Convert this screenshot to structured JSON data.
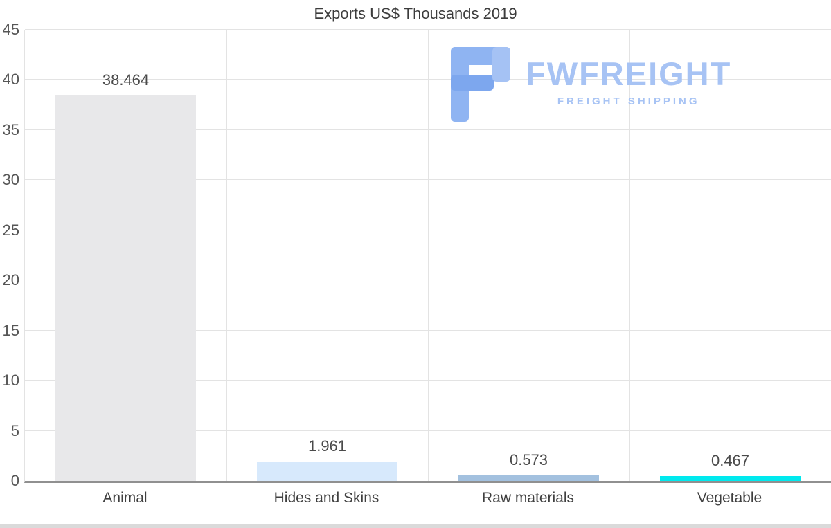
{
  "title": "Exports US$ Thousands 2019",
  "watermark": {
    "brand": "FWFREIGHT",
    "tagline": "FREIGHT SHIPPING",
    "color": "#a7c3f4"
  },
  "chart_data": {
    "type": "bar",
    "title": "Exports US$ Thousands 2019",
    "categories": [
      "Animal",
      "Hides and Skins",
      "Raw materials",
      "Vegetable"
    ],
    "values": [
      38.464,
      1.961,
      0.573,
      0.467
    ],
    "value_labels": [
      "38.464",
      "1.961",
      "0.573",
      "0.467"
    ],
    "bar_colors": [
      "#e8e8ea",
      "#d7e9fc",
      "#a3c1df",
      "#00e9ee"
    ],
    "xlabel": "",
    "ylabel": "",
    "ylim": [
      0,
      45
    ],
    "yticks": [
      0,
      5,
      10,
      15,
      20,
      25,
      30,
      35,
      40,
      45
    ],
    "grid": true,
    "legend": false
  }
}
